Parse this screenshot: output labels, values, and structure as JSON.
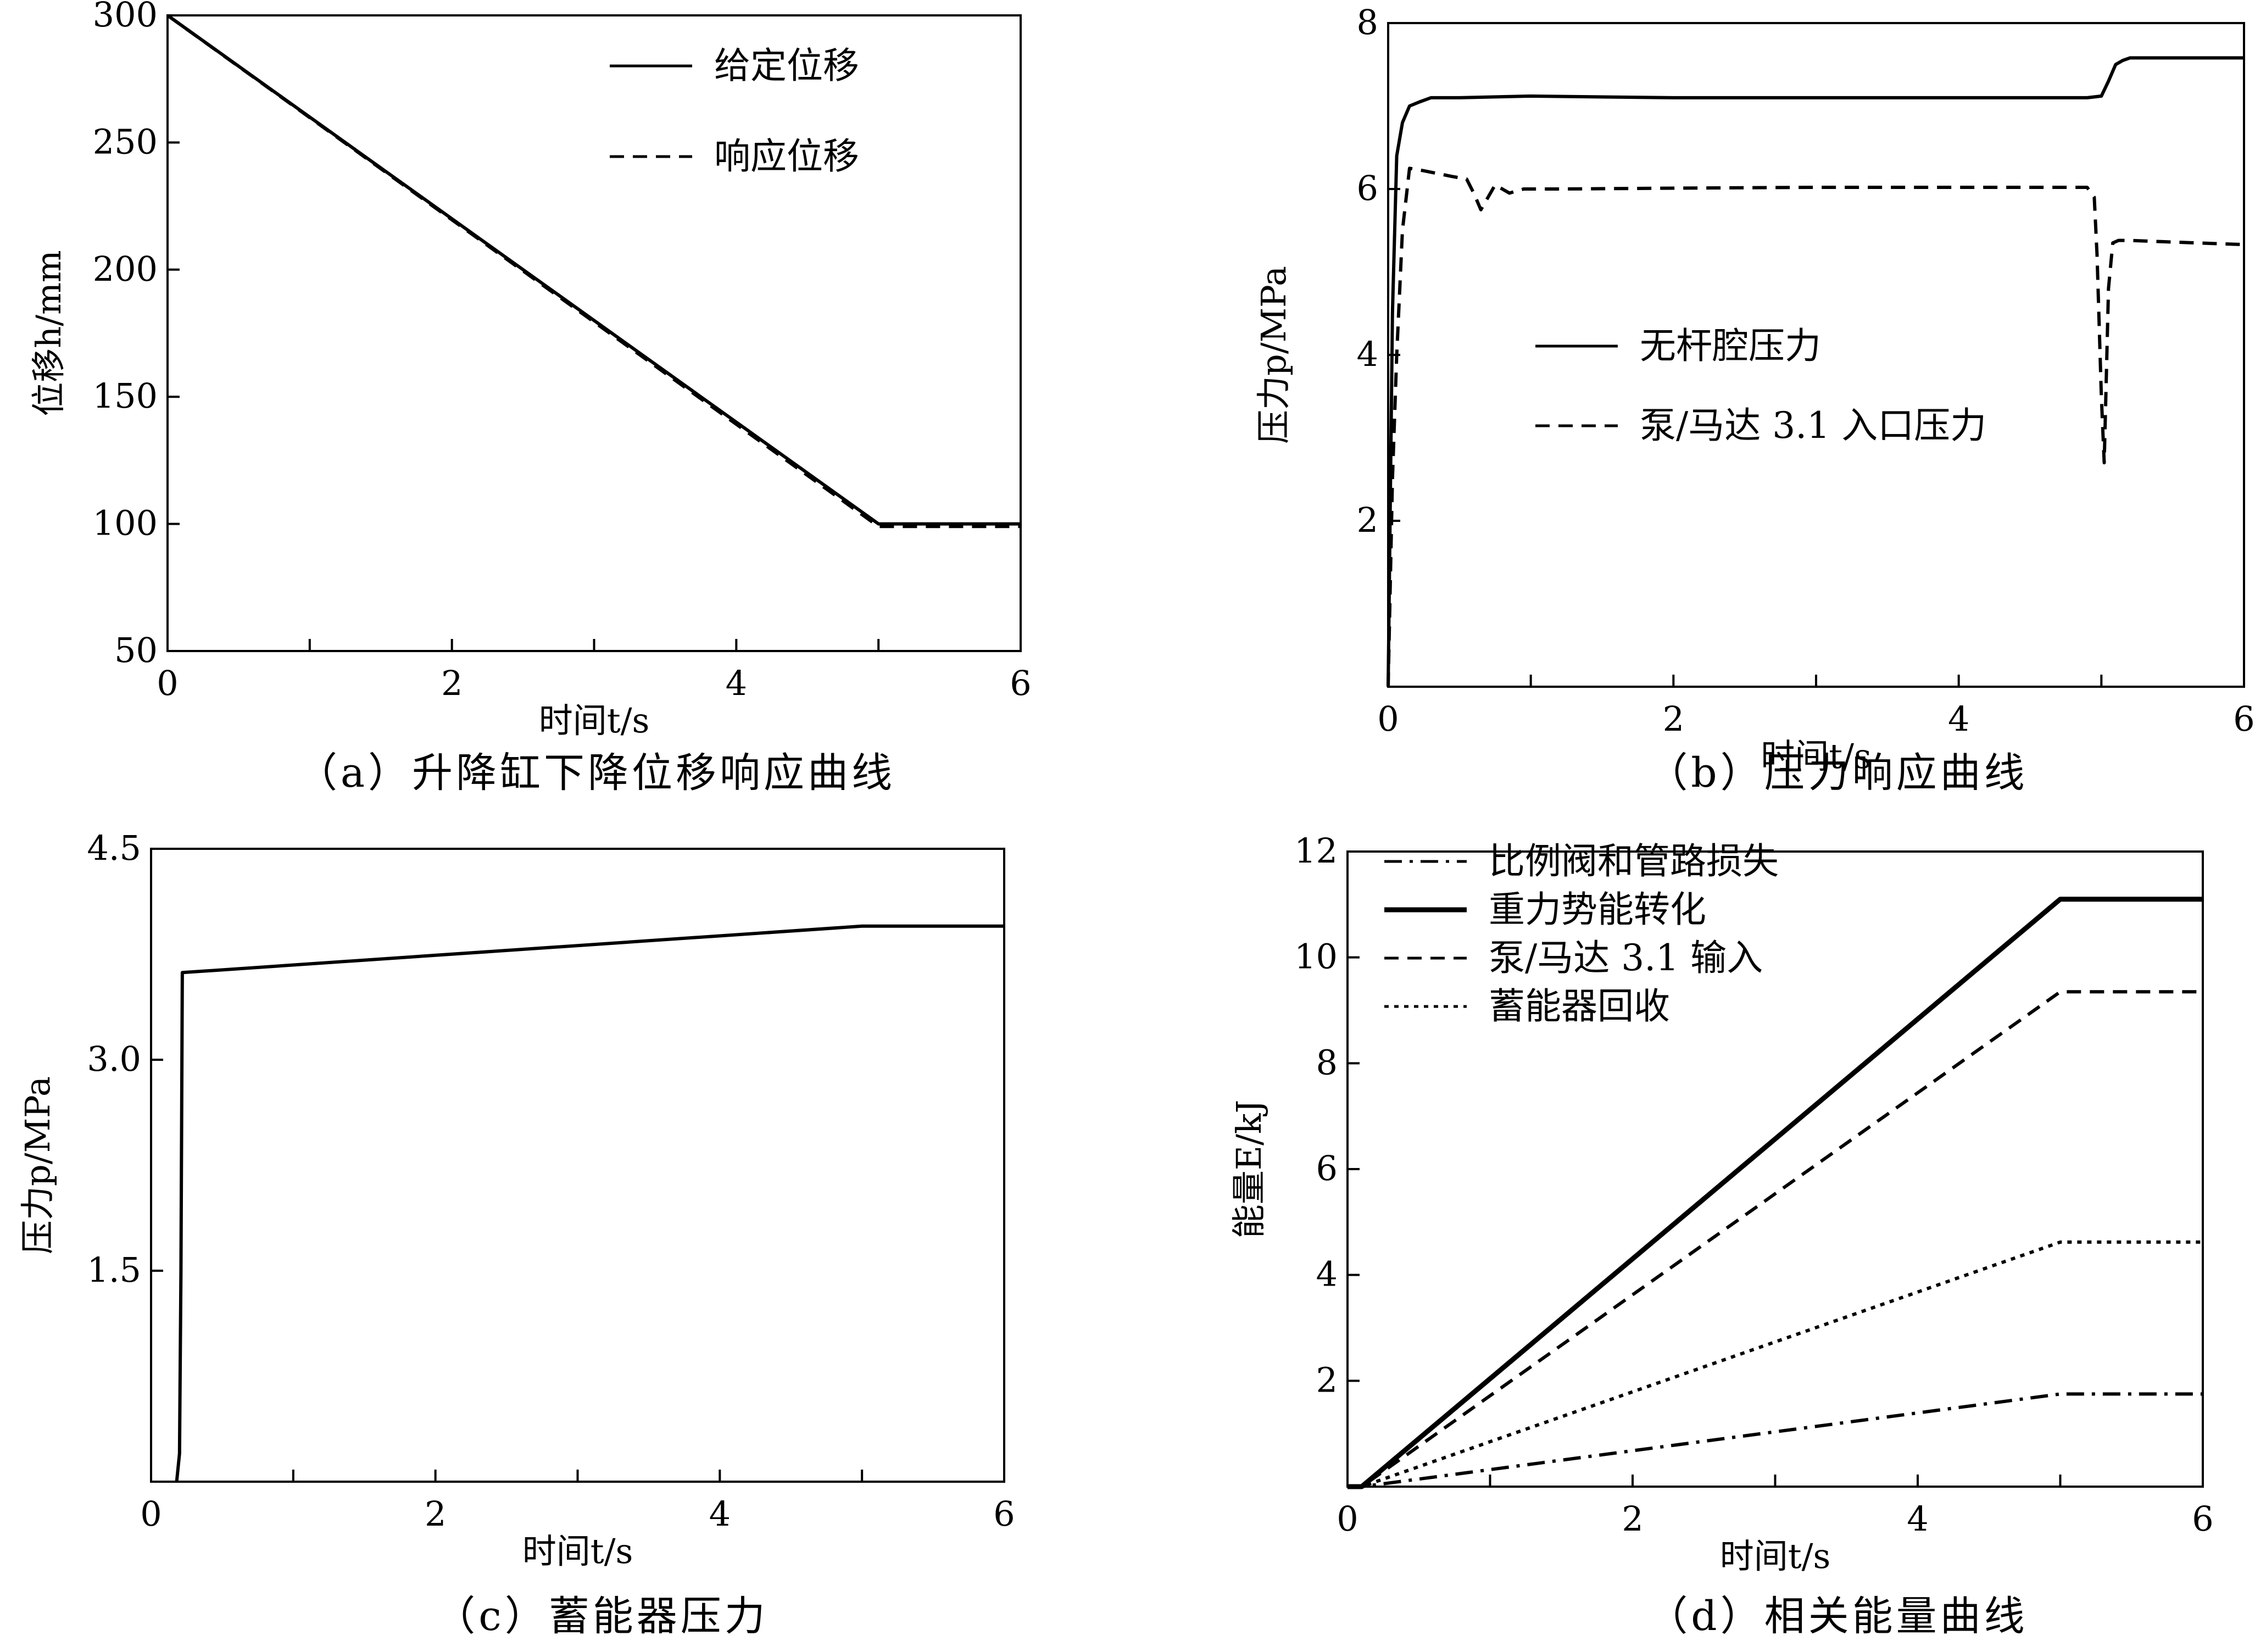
{
  "chart_data": [
    {
      "id": "a",
      "type": "line",
      "caption": "（a）升降缸下降位移响应曲线",
      "xlabel": "时间t/s",
      "ylabel": "位移h/mm",
      "xlim": [
        0,
        6
      ],
      "ylim": [
        50,
        300
      ],
      "xticks": [
        0,
        2,
        4,
        6
      ],
      "yticks": [
        50,
        100,
        150,
        200,
        250,
        300
      ],
      "legend_position": "top-right",
      "series": [
        {
          "name": "给定位移",
          "style": "solid",
          "x": [
            0,
            5,
            6
          ],
          "y": [
            300,
            100,
            100
          ]
        },
        {
          "name": "响应位移",
          "style": "dashed",
          "x": [
            0,
            5,
            6
          ],
          "y": [
            300,
            99,
            99
          ]
        }
      ]
    },
    {
      "id": "b",
      "type": "line",
      "caption": "（b）压力响应曲线",
      "xlabel": "时间t/s",
      "ylabel": "压力p/MPa",
      "xlim": [
        0,
        6
      ],
      "ylim": [
        0,
        8
      ],
      "xticks": [
        0,
        2,
        4,
        6
      ],
      "xtick_labels": [
        "0",
        "2",
        "4",
        "6"
      ],
      "yticks": [
        2,
        4,
        6,
        8
      ],
      "legend_position": "center-right",
      "series": [
        {
          "name": "无杆腔压力",
          "style": "solid",
          "x": [
            0,
            0.03,
            0.06,
            0.1,
            0.15,
            0.22,
            0.3,
            0.5,
            1.0,
            2.0,
            3.0,
            4.0,
            4.9,
            5.0,
            5.05,
            5.1,
            5.15,
            5.2,
            6.0
          ],
          "y": [
            0,
            4.5,
            6.4,
            6.8,
            7.0,
            7.05,
            7.1,
            7.1,
            7.12,
            7.1,
            7.1,
            7.1,
            7.1,
            7.12,
            7.3,
            7.5,
            7.55,
            7.58,
            7.58
          ]
        },
        {
          "name": "泵/马达 3.1 入口压力",
          "style": "dashed",
          "x": [
            0,
            0.03,
            0.06,
            0.1,
            0.15,
            0.25,
            0.45,
            0.55,
            0.6,
            0.65,
            0.7,
            0.75,
            0.8,
            0.85,
            0.95,
            1.2,
            2.0,
            3.0,
            4.0,
            4.9,
            4.95,
            4.97,
            5.0,
            5.02,
            5.05,
            5.08,
            5.12,
            5.2,
            5.5,
            6.0
          ],
          "y": [
            0,
            2.5,
            4.0,
            5.5,
            6.25,
            6.22,
            6.15,
            6.12,
            5.95,
            5.75,
            5.9,
            6.05,
            6.0,
            5.95,
            6.0,
            6.0,
            6.01,
            6.02,
            6.02,
            6.02,
            5.9,
            5.2,
            3.5,
            2.7,
            4.8,
            5.35,
            5.38,
            5.38,
            5.36,
            5.33
          ]
        }
      ]
    },
    {
      "id": "c",
      "type": "line",
      "caption": "（c）蓄能器压力",
      "xlabel": "时间t/s",
      "ylabel": "压力p/MPa",
      "xlim": [
        0,
        6
      ],
      "ylim": [
        0,
        4.5
      ],
      "xticks": [
        0,
        2,
        4,
        6
      ],
      "yticks": [
        1.5,
        3.0,
        4.5
      ],
      "ytick_labels": [
        "1.5",
        "3.0",
        "4.5"
      ],
      "series": [
        {
          "name": "",
          "style": "solid",
          "x": [
            0.18,
            0.2,
            0.21,
            0.22,
            5.0,
            6.0
          ],
          "y": [
            0,
            0.2,
            1.5,
            3.62,
            3.95,
            3.95
          ]
        }
      ]
    },
    {
      "id": "d",
      "type": "line",
      "caption": "（d）相关能量曲线",
      "xlabel": "时间t/s",
      "ylabel": "能量E/kJ",
      "xlim": [
        0,
        6
      ],
      "ylim": [
        0,
        12
      ],
      "xticks": [
        0,
        2,
        4,
        6
      ],
      "yticks": [
        2,
        4,
        6,
        8,
        10,
        12
      ],
      "legend_position": "top-left",
      "series": [
        {
          "name": "比例阀和管路损失",
          "style": "dashdot",
          "x": [
            0,
            0.1,
            5.0,
            6.0
          ],
          "y": [
            0,
            0,
            1.75,
            1.75
          ]
        },
        {
          "name": "重力势能转化",
          "style": "solid-thick",
          "x": [
            0,
            0.1,
            5.0,
            6.0
          ],
          "y": [
            0,
            0,
            11.1,
            11.1
          ]
        },
        {
          "name": "泵/马达 3.1 输入",
          "style": "dashed",
          "x": [
            0,
            0.1,
            5.0,
            6.0
          ],
          "y": [
            0,
            0,
            9.35,
            9.35
          ]
        },
        {
          "name": "蓄能器回收",
          "style": "dotted",
          "x": [
            0,
            0.1,
            5.0,
            6.0
          ],
          "y": [
            0,
            0,
            4.62,
            4.62
          ]
        }
      ]
    }
  ]
}
